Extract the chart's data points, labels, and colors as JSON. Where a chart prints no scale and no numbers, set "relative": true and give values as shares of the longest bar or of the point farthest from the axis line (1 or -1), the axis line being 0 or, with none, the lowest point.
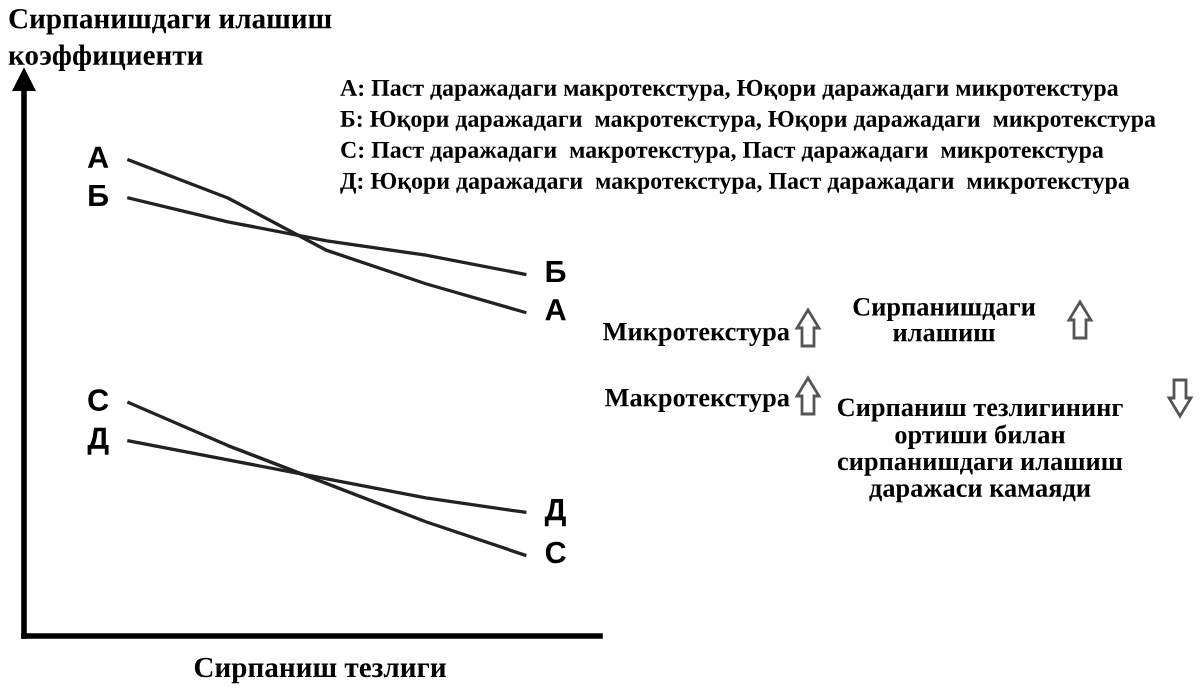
{
  "chart_data": {
    "type": "line",
    "relative": true,
    "ylabel": "Сирпанишдаги илашиш\nкоэффициенти",
    "xlabel": "Сирпаниш тезлиги",
    "categories": [
      null,
      null,
      null,
      null,
      null
    ],
    "grid": false,
    "marker": "none",
    "line_style": "solid",
    "series": [
      {
        "name": "А",
        "color": "#222222",
        "values": [
          1.0,
          0.92,
          0.81,
          0.74,
          0.68
        ]
      },
      {
        "name": "Б",
        "color": "#222222",
        "values": [
          0.92,
          0.87,
          0.83,
          0.8,
          0.76
        ]
      },
      {
        "name": "С",
        "color": "#222222",
        "values": [
          0.49,
          0.4,
          0.32,
          0.24,
          0.17
        ]
      },
      {
        "name": "Д",
        "color": "#222222",
        "values": [
          0.41,
          0.37,
          0.33,
          0.29,
          0.26
        ]
      }
    ],
    "annotations": [
      "А: Паст даражадаги макротекстура, Юқори даражадаги микротекстура",
      "Б: Юқори даражадаги  макротекстура, Юқори даражадаги  микротекстура",
      "С: Паст даражадаги  макротекстура, Паст даражадаги  микротекстура",
      "Д: Юқори даражадаги  макротекстура, Паст даражадаги  микротекстура",
      "Микротекстура",
      "Сирпанишдаги\nилашиш",
      "Макротекстура",
      "Сирпаниш тезлигининг\nортиши билан\nсирпанишдаги илашиш\nдаражаси камаяди"
    ]
  }
}
